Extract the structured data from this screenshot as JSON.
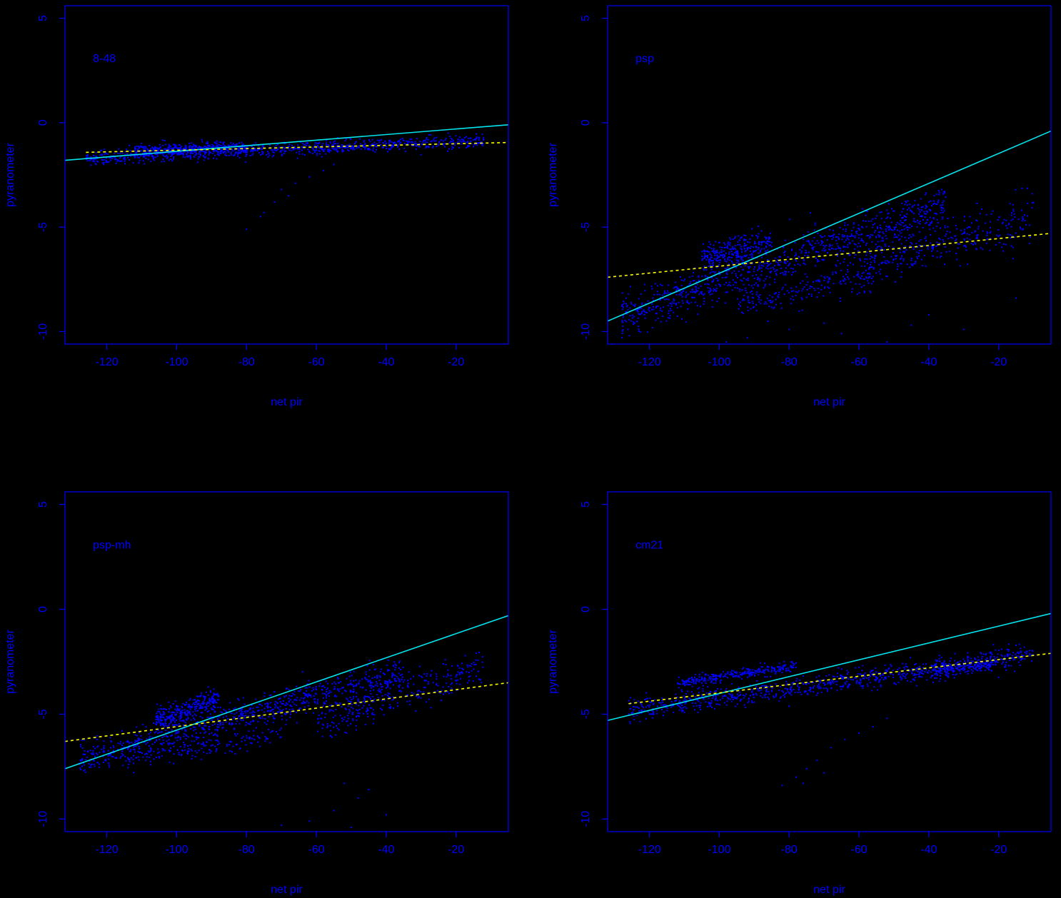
{
  "colors": {
    "background": "#000000",
    "axes": "#0000ff",
    "points": "#0000ff",
    "fit_solid": "#00e5ee",
    "fit_dashed": "#ffff00"
  },
  "chart_data": [
    {
      "type": "scatter",
      "panel_label": "8-48",
      "xlabel": "net pir",
      "ylabel": "pyranometer",
      "xlim": [
        -132,
        -5
      ],
      "ylim": [
        -10.6,
        5.6
      ],
      "xticks": [
        -120,
        -100,
        -80,
        -60,
        -40,
        -20
      ],
      "yticks": [
        -10,
        -5,
        0,
        5
      ],
      "clusters": [
        {
          "x": [
            -126,
            -12
          ],
          "y": [
            -1.7,
            -0.85
          ],
          "spread": 0.35,
          "n": 900
        },
        {
          "x": [
            -112,
            -80
          ],
          "y": [
            -1.3,
            -1.15
          ],
          "spread": 0.3,
          "n": 300
        }
      ],
      "outliers": [
        [
          -80,
          -5.1
        ],
        [
          -75,
          -4.3
        ],
        [
          -72,
          -3.8
        ],
        [
          -70,
          -3.2
        ],
        [
          -66,
          -2.9
        ],
        [
          -62,
          -2.6
        ],
        [
          -58,
          -2.3
        ],
        [
          -55,
          -2.0
        ],
        [
          -76,
          -4.5
        ],
        [
          -68,
          -3.5
        ]
      ],
      "fit_solid": {
        "x": [
          -132,
          -5
        ],
        "y": [
          -1.8,
          -0.1
        ]
      },
      "fit_dashed": {
        "x": [
          -126,
          -5
        ],
        "y": [
          -1.42,
          -0.95
        ]
      }
    },
    {
      "type": "scatter",
      "panel_label": "psp",
      "xlabel": "net pir",
      "ylabel": "pyranometer",
      "xlim": [
        -132,
        -5
      ],
      "ylim": [
        -10.6,
        5.6
      ],
      "xticks": [
        -120,
        -100,
        -80,
        -60,
        -40,
        -20
      ],
      "yticks": [
        -10,
        -5,
        0,
        5
      ],
      "clusters": [
        {
          "x": [
            -128,
            -35
          ],
          "y": [
            -9.3,
            -3.9
          ],
          "spread": 1.1,
          "n": 900
        },
        {
          "x": [
            -105,
            -85
          ],
          "y": [
            -6.5,
            -5.8
          ],
          "spread": 0.8,
          "n": 300
        },
        {
          "x": [
            -60,
            -10
          ],
          "y": [
            -6.8,
            -4.5
          ],
          "spread": 1.3,
          "n": 350
        },
        {
          "x": [
            -95,
            -55
          ],
          "y": [
            -8.8,
            -7.2
          ],
          "spread": 0.9,
          "n": 200
        }
      ],
      "outliers": [
        [
          -92,
          -10.3
        ],
        [
          -80,
          -9.9
        ],
        [
          -70,
          -9.6
        ],
        [
          -52,
          -10.5
        ],
        [
          -40,
          -9.2
        ],
        [
          -30,
          -9.9
        ],
        [
          -15,
          -8.4
        ],
        [
          -98,
          -10.5
        ],
        [
          -65,
          -10.1
        ],
        [
          -45,
          -9.7
        ]
      ],
      "fit_solid": {
        "x": [
          -132,
          -5
        ],
        "y": [
          -9.5,
          -0.4
        ]
      },
      "fit_dashed": {
        "x": [
          -132,
          -5
        ],
        "y": [
          -7.4,
          -5.3
        ]
      }
    },
    {
      "type": "scatter",
      "panel_label": "psp-mh",
      "xlabel": "net pir",
      "ylabel": "pyranometer",
      "xlim": [
        -132,
        -5
      ],
      "ylim": [
        -10.6,
        5.6
      ],
      "xticks": [
        -120,
        -100,
        -80,
        -60,
        -40,
        -20
      ],
      "yticks": [
        -10,
        -5,
        0,
        5
      ],
      "clusters": [
        {
          "x": [
            -128,
            -35
          ],
          "y": [
            -7.2,
            -3.0
          ],
          "spread": 0.85,
          "n": 900
        },
        {
          "x": [
            -106,
            -88
          ],
          "y": [
            -5.3,
            -4.3
          ],
          "spread": 0.6,
          "n": 300
        },
        {
          "x": [
            -60,
            -12
          ],
          "y": [
            -5.5,
            -2.7
          ],
          "spread": 1.0,
          "n": 300
        },
        {
          "x": [
            -115,
            -70
          ],
          "y": [
            -7.2,
            -6.0
          ],
          "spread": 0.5,
          "n": 150
        }
      ],
      "outliers": [
        [
          -70,
          -10.3
        ],
        [
          -62,
          -10.1
        ],
        [
          -55,
          -9.6
        ],
        [
          -50,
          -10.4
        ],
        [
          -48,
          -9.0
        ],
        [
          -45,
          -8.6
        ],
        [
          -40,
          -9.8
        ],
        [
          -52,
          -8.3
        ]
      ],
      "fit_solid": {
        "x": [
          -132,
          -5
        ],
        "y": [
          -7.6,
          -0.3
        ]
      },
      "fit_dashed": {
        "x": [
          -132,
          -5
        ],
        "y": [
          -6.3,
          -3.5
        ]
      }
    },
    {
      "type": "scatter",
      "panel_label": "cm21",
      "xlabel": "net pir",
      "ylabel": "pyranometer",
      "xlim": [
        -132,
        -5
      ],
      "ylim": [
        -10.6,
        5.6
      ],
      "xticks": [
        -120,
        -100,
        -80,
        -60,
        -40,
        -20
      ],
      "yticks": [
        -10,
        -5,
        0,
        5
      ],
      "clusters": [
        {
          "x": [
            -126,
            -10
          ],
          "y": [
            -4.8,
            -2.2
          ],
          "spread": 0.6,
          "n": 900
        },
        {
          "x": [
            -112,
            -78
          ],
          "y": [
            -3.5,
            -2.7
          ],
          "spread": 0.3,
          "n": 300
        },
        {
          "x": [
            -40,
            -22
          ],
          "y": [
            -3.0,
            -2.6
          ],
          "spread": 0.4,
          "n": 150
        }
      ],
      "outliers": [
        [
          -82,
          -8.4
        ],
        [
          -78,
          -8.0
        ],
        [
          -75,
          -7.6
        ],
        [
          -72,
          -7.2
        ],
        [
          -68,
          -6.6
        ],
        [
          -64,
          -6.2
        ],
        [
          -60,
          -5.9
        ],
        [
          -56,
          -5.6
        ],
        [
          -52,
          -5.2
        ],
        [
          -76,
          -8.3
        ],
        [
          -70,
          -7.8
        ]
      ],
      "fit_solid": {
        "x": [
          -132,
          -5
        ],
        "y": [
          -5.3,
          -0.2
        ]
      },
      "fit_dashed": {
        "x": [
          -126,
          -5
        ],
        "y": [
          -4.5,
          -2.1
        ]
      }
    }
  ]
}
